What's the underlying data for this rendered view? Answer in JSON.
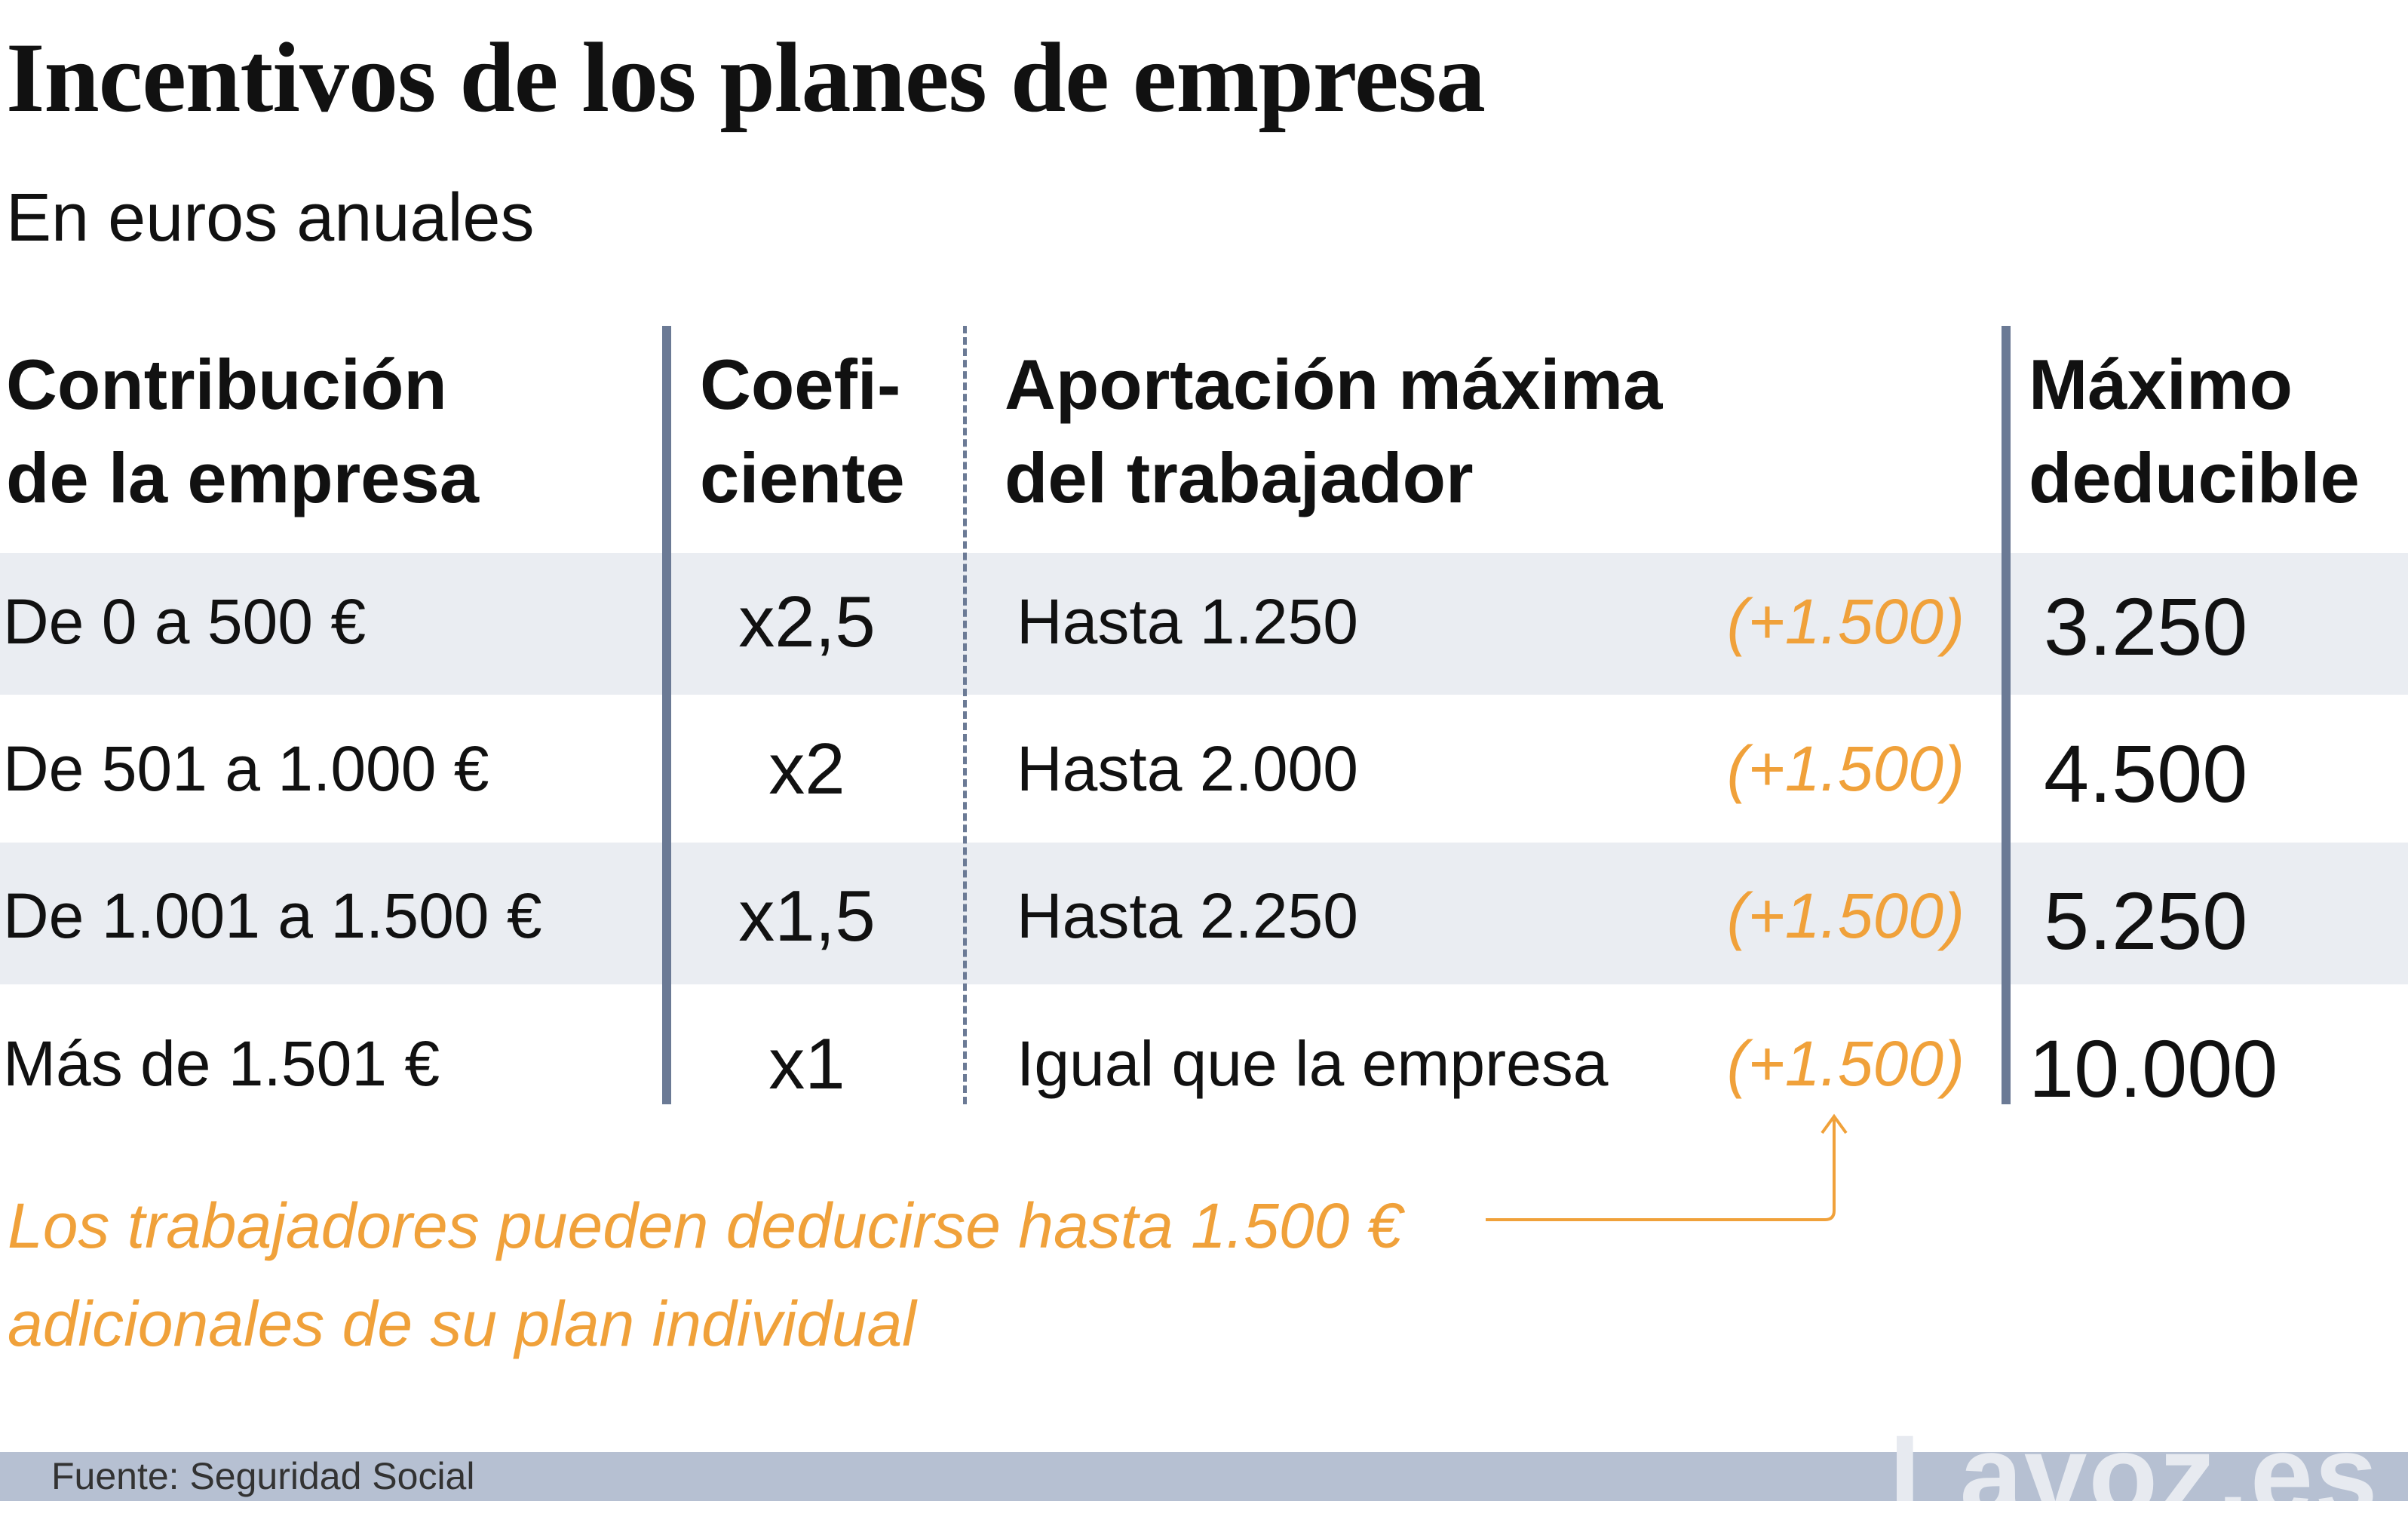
{
  "title": "Incentivos de los planes de empresa",
  "subtitle": "En euros anuales",
  "headers": {
    "contribucion": [
      "Contribución",
      "de la empresa"
    ],
    "coeficiente": [
      "Coefi-",
      "ciente"
    ],
    "aportacion": [
      "Aportación máxima",
      "del trabajador"
    ],
    "maximo": [
      "Máximo",
      "deducible"
    ]
  },
  "chart_data": {
    "type": "table",
    "title": "Incentivos de los planes de empresa",
    "subtitle": "En euros anuales",
    "columns": [
      "Contribución de la empresa",
      "Coeficiente",
      "Aportación máxima del trabajador",
      "Máximo deducible"
    ],
    "rows": [
      {
        "contribucion": "De 0 a 500 €",
        "coeficiente": "x2,5",
        "aportacion": "Hasta 1.250",
        "extra": "(+1.500)",
        "maximo": "3.250"
      },
      {
        "contribucion": "De 501 a 1.000 €",
        "coeficiente": "x2",
        "aportacion": "Hasta 2.000",
        "extra": "(+1.500)",
        "maximo": "4.500"
      },
      {
        "contribucion": "De 1.001 a 1.500 €",
        "coeficiente": "x1,5",
        "aportacion": "Hasta 2.250",
        "extra": "(+1.500)",
        "maximo": "5.250"
      },
      {
        "contribucion": "Más de 1.501 €",
        "coeficiente": "x1",
        "aportacion": "Igual que la empresa",
        "extra": "(+1.500)",
        "maximo": "10.000"
      }
    ]
  },
  "note": "Los trabajadores pueden deducirse hasta 1.500 € adicionales de su plan individual",
  "source": "Fuente:  Seguridad Social",
  "logo": "Lavoz.es",
  "colors": {
    "accent": "#f0a13a",
    "row_band": "#eaedf2",
    "rule": "#6b7a95",
    "footer": "#b6c0d2"
  }
}
